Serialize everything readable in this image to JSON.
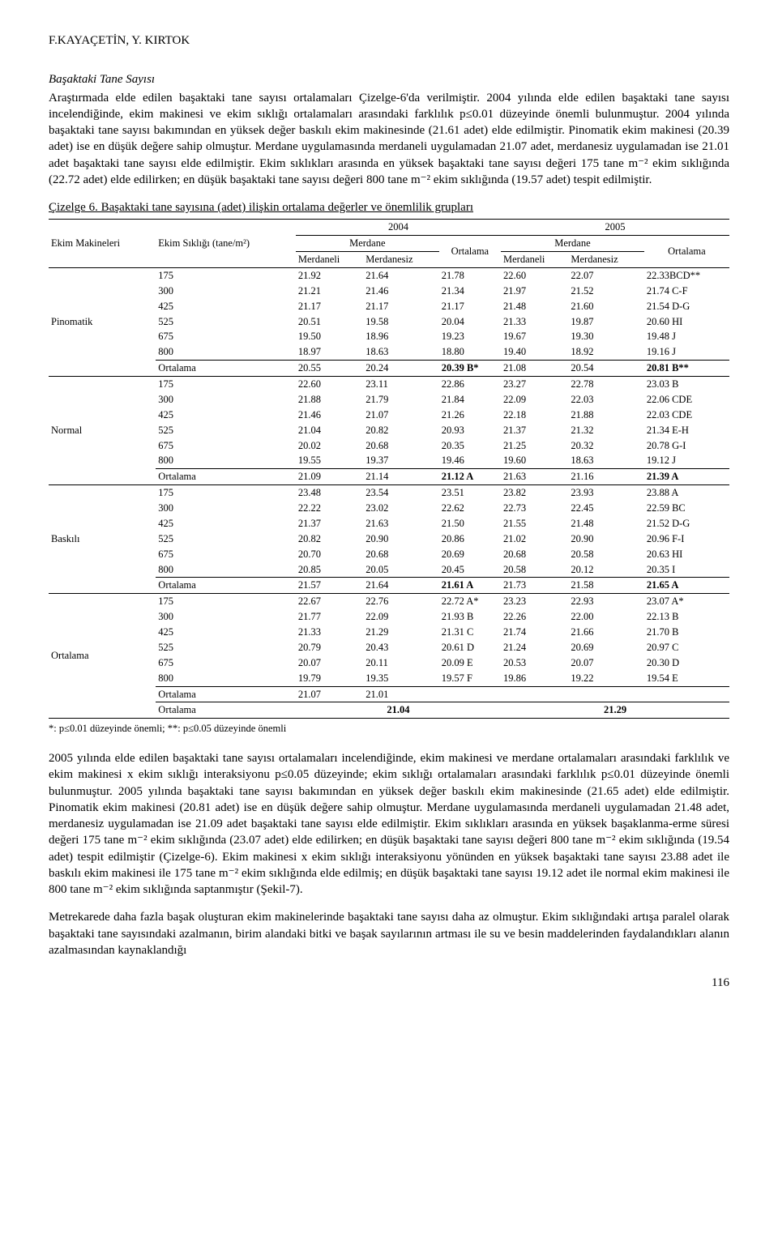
{
  "page": {
    "authors": "F.KAYAÇETİN, Y. KIRTOK",
    "page_number": "116"
  },
  "section_title": "Başaktaki Tane Sayısı",
  "para1": "Araştırmada elde edilen başaktaki tane sayısı ortalamaları Çizelge-6'da verilmiştir. 2004 yılında elde edilen başaktaki tane sayısı incelendiğinde, ekim makinesi ve ekim sıklığı ortalamaları arasındaki farklılık p≤0.01 düzeyinde önemli bulunmuştur. 2004 yılında başaktaki tane sayısı bakımından en yüksek değer baskılı ekim makinesinde (21.61 adet) elde edilmiştir. Pinomatik ekim makinesi (20.39 adet) ise en düşük değere sahip olmuştur. Merdane uygulamasında merdaneli uygulamadan 21.07 adet, merdanesiz uygulamadan ise 21.01 adet başaktaki tane sayısı elde edilmiştir. Ekim sıklıkları arasında en yüksek başaktaki tane sayısı değeri 175 tane m⁻² ekim sıklığında (22.72 adet) elde edilirken; en düşük başaktaki tane sayısı değeri 800 tane m⁻² ekim sıklığında (19.57 adet) tespit edilmiştir.",
  "table": {
    "caption": "Çizelge 6. Başaktaki tane sayısına (adet) ilişkin ortalama değerler ve önemlilik grupları",
    "head": {
      "ekim_makineleri": "Ekim Makineleri",
      "ekim_sikligi": "Ekim Sıklığı (tane/m²)",
      "y2004": "2004",
      "y2005": "2005",
      "merdane": "Merdane",
      "merdaneli": "Merdaneli",
      "merdanesiz": "Merdanesiz",
      "ortalama": "Ortalama"
    },
    "groups": [
      {
        "name": "Pinomatik",
        "rows": [
          [
            "175",
            "21.92",
            "21.64",
            "21.78",
            "22.60",
            "22.07",
            "22.33BCD**"
          ],
          [
            "300",
            "21.21",
            "21.46",
            "21.34",
            "21.97",
            "21.52",
            "21.74 C-F"
          ],
          [
            "425",
            "21.17",
            "21.17",
            "21.17",
            "21.48",
            "21.60",
            "21.54 D-G"
          ],
          [
            "525",
            "20.51",
            "19.58",
            "20.04",
            "21.33",
            "19.87",
            "20.60 HI"
          ],
          [
            "675",
            "19.50",
            "18.96",
            "19.23",
            "19.67",
            "19.30",
            "19.48 J"
          ],
          [
            "800",
            "18.97",
            "18.63",
            "18.80",
            "19.40",
            "18.92",
            "19.16 J"
          ]
        ],
        "ort": [
          "Ortalama",
          "20.55",
          "20.24",
          "20.39 B*",
          "21.08",
          "20.54",
          "20.81 B**"
        ]
      },
      {
        "name": "Normal",
        "rows": [
          [
            "175",
            "22.60",
            "23.11",
            "22.86",
            "23.27",
            "22.78",
            "23.03 B"
          ],
          [
            "300",
            "21.88",
            "21.79",
            "21.84",
            "22.09",
            "22.03",
            "22.06 CDE"
          ],
          [
            "425",
            "21.46",
            "21.07",
            "21.26",
            "22.18",
            "21.88",
            "22.03 CDE"
          ],
          [
            "525",
            "21.04",
            "20.82",
            "20.93",
            "21.37",
            "21.32",
            "21.34 E-H"
          ],
          [
            "675",
            "20.02",
            "20.68",
            "20.35",
            "21.25",
            "20.32",
            "20.78 G-I"
          ],
          [
            "800",
            "19.55",
            "19.37",
            "19.46",
            "19.60",
            "18.63",
            "19.12 J"
          ]
        ],
        "ort": [
          "Ortalama",
          "21.09",
          "21.14",
          "21.12 A",
          "21.63",
          "21.16",
          "21.39 A"
        ]
      },
      {
        "name": "Baskılı",
        "rows": [
          [
            "175",
            "23.48",
            "23.54",
            "23.51",
            "23.82",
            "23.93",
            "23.88 A"
          ],
          [
            "300",
            "22.22",
            "23.02",
            "22.62",
            "22.73",
            "22.45",
            "22.59 BC"
          ],
          [
            "425",
            "21.37",
            "21.63",
            "21.50",
            "21.55",
            "21.48",
            "21.52 D-G"
          ],
          [
            "525",
            "20.82",
            "20.90",
            "20.86",
            "21.02",
            "20.90",
            "20.96 F-I"
          ],
          [
            "675",
            "20.70",
            "20.68",
            "20.69",
            "20.68",
            "20.58",
            "20.63 HI"
          ],
          [
            "800",
            "20.85",
            "20.05",
            "20.45",
            "20.58",
            "20.12",
            "20.35 I"
          ]
        ],
        "ort": [
          "Ortalama",
          "21.57",
          "21.64",
          "21.61 A",
          "21.73",
          "21.58",
          "21.65 A"
        ]
      },
      {
        "name": "Ortalama",
        "rows": [
          [
            "175",
            "22.67",
            "22.76",
            "22.72 A*",
            "23.23",
            "22.93",
            "23.07 A*"
          ],
          [
            "300",
            "21.77",
            "22.09",
            "21.93 B",
            "22.26",
            "22.00",
            "22.13 B"
          ],
          [
            "425",
            "21.33",
            "21.29",
            "21.31 C",
            "21.74",
            "21.66",
            "21.70 B"
          ],
          [
            "525",
            "20.79",
            "20.43",
            "20.61 D",
            "21.24",
            "20.69",
            "20.97 C"
          ],
          [
            "675",
            "20.07",
            "20.11",
            "20.09 E",
            "20.53",
            "20.07",
            "20.30 D"
          ],
          [
            "800",
            "19.79",
            "19.35",
            "19.57 F",
            "19.86",
            "19.22",
            "19.54 E"
          ]
        ],
        "ort": [
          "Ortalama",
          "21.07",
          "21.01",
          "",
          "",
          "",
          ""
        ]
      }
    ],
    "grand": {
      "label": "Ortalama",
      "v2004": "21.04",
      "v2005": "21.29"
    },
    "footnote": "*: p≤0.01 düzeyinde önemli; **: p≤0.05 düzeyinde önemli"
  },
  "para2": "2005 yılında elde edilen başaktaki tane sayısı ortalamaları incelendiğinde, ekim makinesi ve merdane ortalamaları arasındaki farklılık ve ekim makinesi x ekim sıklığı interaksiyonu p≤0.05 düzeyinde; ekim sıklığı ortalamaları arasındaki farklılık p≤0.01 düzeyinde önemli bulunmuştur. 2005 yılında başaktaki tane sayısı bakımından en yüksek değer baskılı ekim makinesinde (21.65 adet) elde edilmiştir. Pinomatik ekim makinesi (20.81 adet) ise en düşük değere sahip olmuştur. Merdane uygulamasında merdaneli uygulamadan 21.48 adet, merdanesiz uygulamadan ise 21.09 adet başaktaki tane sayısı elde edilmiştir. Ekim sıklıkları arasında en yüksek başaklanma-erme süresi değeri 175 tane m⁻² ekim sıklığında (23.07 adet) elde edilirken; en düşük başaktaki tane sayısı değeri 800 tane m⁻² ekim sıklığında (19.54 adet) tespit edilmiştir (Çizelge-6). Ekim makinesi x ekim sıklığı interaksiyonu yönünden en yüksek başaktaki tane sayısı 23.88 adet ile baskılı ekim makinesi ile 175 tane m⁻² ekim sıklığında elde edilmiş; en düşük başaktaki tane sayısı 19.12 adet ile normal ekim makinesi ile 800 tane m⁻² ekim sıklığında saptanmıştır (Şekil-7).",
  "para3": "Metrekarede daha fazla başak oluşturan ekim makinelerinde başaktaki tane sayısı daha az olmuştur. Ekim sıklığındaki artışa paralel olarak başaktaki tane sayısındaki azalmanın, birim alandaki bitki ve başak sayılarının artması ile su ve besin maddelerinden faydalandıkları alanın azalmasından kaynaklandığı"
}
